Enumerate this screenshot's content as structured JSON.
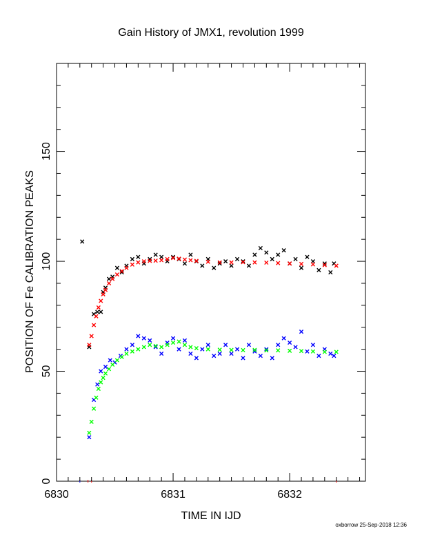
{
  "footer": {
    "stamp": "oxborrow 25-Sep-2018 12:36"
  },
  "chart_data": {
    "type": "scatter",
    "title": "Gain History of JMX1, revolution 1999",
    "xlabel": "TIME IN IJD",
    "ylabel": "POSITION OF Fe CALIBRATION PEAKS",
    "xlim": [
      6830,
      6832.65
    ],
    "ylim": [
      0,
      190
    ],
    "x_ticks": [
      6830,
      6831,
      6832
    ],
    "x_tick_labels": [
      "6830",
      "6831",
      "6832"
    ],
    "y_ticks": [
      0,
      50,
      100,
      150
    ],
    "y_tick_labels": [
      "0",
      "50",
      "100",
      "150"
    ],
    "x_minor_step": 0.1,
    "y_minor_step": 10,
    "grid": false,
    "legend": "none",
    "series": [
      {
        "color": "#000000",
        "marker": "x",
        "x": [
          6830.22,
          6830.28,
          6830.32,
          6830.35,
          6830.38,
          6830.4,
          6830.42,
          6830.45,
          6830.48,
          6830.52,
          6830.56,
          6830.6,
          6830.65,
          6830.7,
          6830.75,
          6830.8,
          6830.85,
          6830.9,
          6830.95,
          6831.0,
          6831.05,
          6831.1,
          6831.15,
          6831.2,
          6831.25,
          6831.3,
          6831.35,
          6831.4,
          6831.45,
          6831.5,
          6831.55,
          6831.6,
          6831.65,
          6831.7,
          6831.75,
          6831.8,
          6831.85,
          6831.9,
          6831.95,
          6832.0,
          6832.05,
          6832.1,
          6832.15,
          6832.2,
          6832.25,
          6832.3,
          6832.35,
          6832.38
        ],
        "y": [
          109,
          61,
          76,
          77,
          77,
          86,
          88,
          92,
          93,
          97,
          95,
          98,
          101,
          102,
          99,
          101,
          103,
          102,
          100,
          102,
          101,
          99,
          103,
          100,
          98,
          101,
          97,
          99,
          100,
          98,
          101,
          100,
          98,
          103,
          106,
          104,
          101,
          103,
          105,
          99,
          101,
          97,
          102,
          100,
          96,
          99,
          95,
          99
        ]
      },
      {
        "color": "#ff0000",
        "marker": "x",
        "x": [
          6830.28,
          6830.3,
          6830.32,
          6830.34,
          6830.36,
          6830.38,
          6830.4,
          6830.42,
          6830.45,
          6830.48,
          6830.52,
          6830.56,
          6830.6,
          6830.65,
          6830.7,
          6830.75,
          6830.8,
          6830.85,
          6830.9,
          6830.95,
          6831.0,
          6831.05,
          6831.1,
          6831.15,
          6831.2,
          6831.3,
          6831.4,
          6831.5,
          6831.6,
          6831.7,
          6831.8,
          6831.9,
          6832.0,
          6832.1,
          6832.2,
          6832.3,
          6832.4
        ],
        "y": [
          62,
          66,
          71,
          75,
          79,
          82,
          85,
          87,
          90,
          92,
          94,
          95.5,
          97,
          98.5,
          99.5,
          100,
          100.2,
          100.3,
          100.5,
          101,
          101.5,
          101.2,
          100.8,
          100.5,
          100.2,
          99.8,
          99.5,
          99.5,
          99.6,
          99.5,
          99.4,
          99.2,
          99,
          98.8,
          98.6,
          98.3,
          98
        ]
      },
      {
        "color": "#0000ff",
        "marker": "x",
        "x": [
          6830.28,
          6830.32,
          6830.35,
          6830.38,
          6830.42,
          6830.46,
          6830.5,
          6830.55,
          6830.6,
          6830.65,
          6830.7,
          6830.75,
          6830.8,
          6830.85,
          6830.9,
          6830.95,
          6831.0,
          6831.05,
          6831.1,
          6831.15,
          6831.2,
          6831.25,
          6831.3,
          6831.35,
          6831.4,
          6831.45,
          6831.5,
          6831.55,
          6831.6,
          6831.65,
          6831.7,
          6831.75,
          6831.8,
          6831.85,
          6831.9,
          6831.95,
          6832.0,
          6832.05,
          6832.1,
          6832.15,
          6832.2,
          6832.25,
          6832.3,
          6832.35,
          6832.38
        ],
        "y": [
          20,
          37,
          44,
          50,
          52,
          55,
          54,
          57,
          60,
          62,
          66,
          65,
          64,
          61,
          58,
          63,
          65,
          60,
          64,
          58,
          56,
          60,
          62,
          57,
          58,
          62,
          58,
          60,
          56,
          62,
          59,
          57,
          60,
          56,
          62,
          65,
          63,
          61,
          68,
          59,
          62,
          57,
          60,
          58,
          57
        ]
      },
      {
        "color": "#00ff00",
        "marker": "x",
        "x": [
          6830.28,
          6830.3,
          6830.32,
          6830.34,
          6830.36,
          6830.38,
          6830.4,
          6830.42,
          6830.45,
          6830.48,
          6830.52,
          6830.56,
          6830.6,
          6830.65,
          6830.7,
          6830.75,
          6830.8,
          6830.85,
          6830.9,
          6830.95,
          6831.0,
          6831.05,
          6831.1,
          6831.15,
          6831.2,
          6831.3,
          6831.4,
          6831.5,
          6831.6,
          6831.7,
          6831.8,
          6831.9,
          6832.0,
          6832.1,
          6832.2,
          6832.3,
          6832.4
        ],
        "y": [
          22,
          27,
          33,
          38,
          42,
          45,
          47,
          49,
          51,
          53,
          55,
          56.5,
          58,
          59,
          60,
          61,
          62,
          61.5,
          61,
          62,
          63,
          63.5,
          62,
          61,
          60.5,
          60,
          59.8,
          59.7,
          59.6,
          59.7,
          59.5,
          59.5,
          59.3,
          59.2,
          59,
          58.8,
          58.8
        ]
      }
    ],
    "x_axis_markers": [
      {
        "x": 6830.2,
        "color": "#0000ff"
      },
      {
        "x": 6830.27,
        "color": "#ff0000"
      },
      {
        "x": 6830.3,
        "color": "#ff0000"
      },
      {
        "x": 6832.4,
        "color": "#ff0000"
      }
    ]
  }
}
